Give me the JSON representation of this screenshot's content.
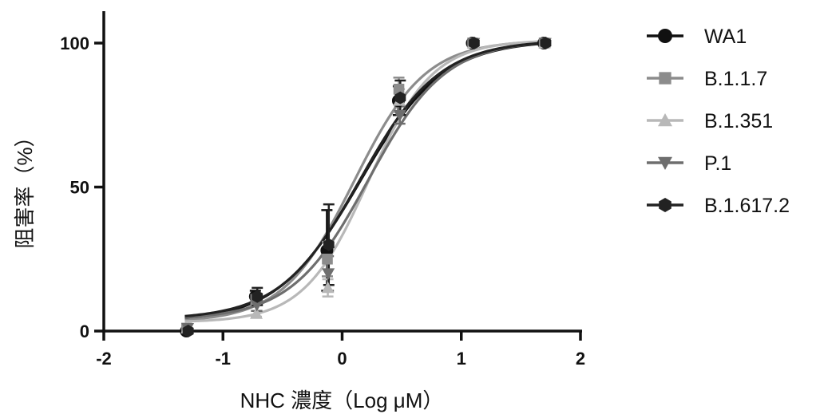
{
  "chart_data": {
    "type": "line",
    "title": "",
    "xlabel": "NHC 濃度（Log μM）",
    "ylabel": "阻害率（%）",
    "xlim": [
      -2,
      2
    ],
    "ylim": [
      0,
      100
    ],
    "x_ticks": [
      "-2",
      "-1",
      "0",
      "1",
      "2"
    ],
    "y_ticks": [
      "0",
      "50",
      "100"
    ],
    "legend_position": "right",
    "grid": false,
    "x": [
      -1.3,
      -0.72,
      -0.12,
      0.48,
      1.1,
      1.7
    ],
    "series": [
      {
        "name": "WA1",
        "marker": "circle",
        "color": "#111111",
        "values": [
          0,
          12,
          28,
          80,
          100,
          100
        ],
        "error": [
          0,
          2,
          14,
          5,
          0,
          0
        ],
        "fit": {
          "bottom": 3,
          "top": 101,
          "logec50": 0.15,
          "hill": 1.25
        }
      },
      {
        "name": "B.1.1.7",
        "marker": "square",
        "color": "#8c8c8c",
        "values": [
          1,
          11,
          25,
          84,
          100,
          100
        ],
        "error": [
          0,
          2,
          6,
          4,
          0,
          0
        ],
        "fit": {
          "bottom": 3,
          "top": 101,
          "logec50": 0.1,
          "hill": 1.45
        }
      },
      {
        "name": "B.1.351",
        "marker": "triangle-up",
        "color": "#b8b8b8",
        "values": [
          1,
          6,
          15,
          80,
          100,
          100
        ],
        "error": [
          0,
          1,
          3,
          4,
          0,
          0
        ],
        "fit": {
          "bottom": 3,
          "top": 101,
          "logec50": 0.22,
          "hill": 1.6
        }
      },
      {
        "name": "P.1",
        "marker": "triangle-down",
        "color": "#6e6e6e",
        "values": [
          1,
          9,
          20,
          75,
          100,
          100
        ],
        "error": [
          0,
          2,
          6,
          3,
          0,
          0
        ],
        "fit": {
          "bottom": 4,
          "top": 101,
          "logec50": 0.22,
          "hill": 1.35
        }
      },
      {
        "name": "B.1.617.2",
        "marker": "hexagon",
        "color": "#222222",
        "values": [
          0,
          12,
          30,
          81,
          100,
          100
        ],
        "error": [
          0,
          3,
          14,
          6,
          0,
          0
        ],
        "fit": {
          "bottom": 4,
          "top": 101,
          "logec50": 0.15,
          "hill": 1.3
        }
      }
    ]
  }
}
